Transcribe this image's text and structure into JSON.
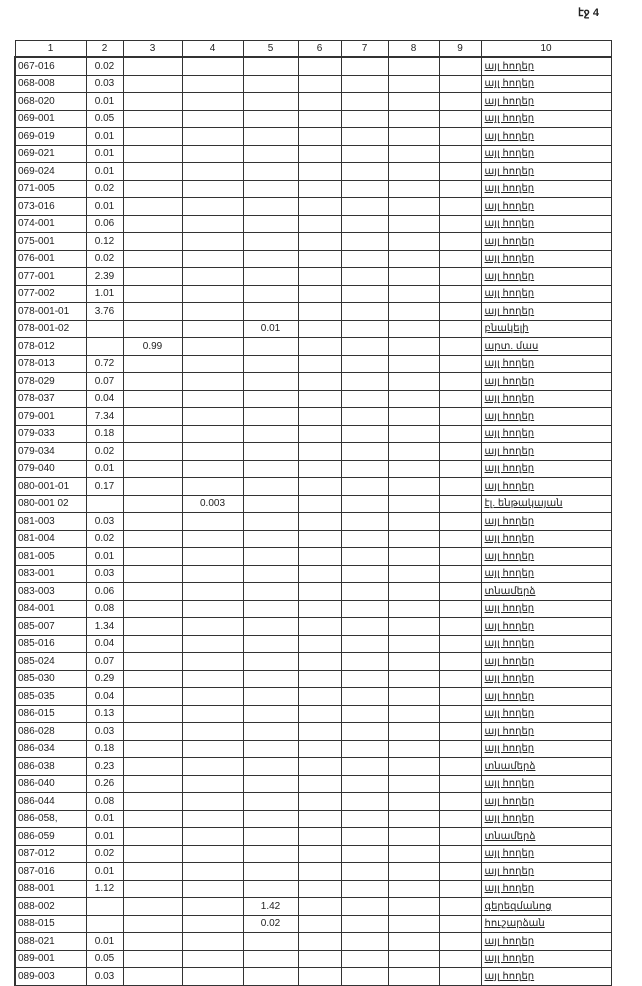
{
  "page_label": "էջ 4",
  "columns": [
    "1",
    "2",
    "3",
    "4",
    "5",
    "6",
    "7",
    "8",
    "9",
    "10"
  ],
  "rows": [
    [
      "067-016",
      "0.02",
      "",
      "",
      "",
      "",
      "",
      "",
      "",
      "այլ հողեր"
    ],
    [
      "068-008",
      "0.03",
      "",
      "",
      "",
      "",
      "",
      "",
      "",
      "այլ հողեր"
    ],
    [
      "068-020",
      "0.01",
      "",
      "",
      "",
      "",
      "",
      "",
      "",
      "այլ հողեր"
    ],
    [
      "069-001",
      "0.05",
      "",
      "",
      "",
      "",
      "",
      "",
      "",
      "այլ հողեր"
    ],
    [
      "069-019",
      "0.01",
      "",
      "",
      "",
      "",
      "",
      "",
      "",
      "այլ հողեր"
    ],
    [
      "069-021",
      "0.01",
      "",
      "",
      "",
      "",
      "",
      "",
      "",
      "այլ հողեր"
    ],
    [
      "069-024",
      "0.01",
      "",
      "",
      "",
      "",
      "",
      "",
      "",
      "այլ հողեր"
    ],
    [
      "071-005",
      "0.02",
      "",
      "",
      "",
      "",
      "",
      "",
      "",
      "այլ հողեր"
    ],
    [
      "073-016",
      "0.01",
      "",
      "",
      "",
      "",
      "",
      "",
      "",
      "այլ հողեր"
    ],
    [
      "074-001",
      "0.06",
      "",
      "",
      "",
      "",
      "",
      "",
      "",
      "այլ հողեր"
    ],
    [
      "075-001",
      "0.12",
      "",
      "",
      "",
      "",
      "",
      "",
      "",
      "այլ հողեր"
    ],
    [
      "076-001",
      "0.02",
      "",
      "",
      "",
      "",
      "",
      "",
      "",
      "այլ հողեր"
    ],
    [
      "077-001",
      "2.39",
      "",
      "",
      "",
      "",
      "",
      "",
      "",
      "այլ հողեր"
    ],
    [
      "077-002",
      "1.01",
      "",
      "",
      "",
      "",
      "",
      "",
      "",
      "այլ հողեր"
    ],
    [
      "078-001-01",
      "3.76",
      "",
      "",
      "",
      "",
      "",
      "",
      "",
      "այլ հողեր"
    ],
    [
      "078-001-02",
      "",
      "",
      "",
      "0.01",
      "",
      "",
      "",
      "",
      "բնակելի"
    ],
    [
      "078-012",
      "",
      "0.99",
      "",
      "",
      "",
      "",
      "",
      "",
      "արտ. մաս"
    ],
    [
      "078-013",
      "0.72",
      "",
      "",
      "",
      "",
      "",
      "",
      "",
      "այլ հողեր"
    ],
    [
      "078-029",
      "0.07",
      "",
      "",
      "",
      "",
      "",
      "",
      "",
      "այլ հողեր"
    ],
    [
      "078-037",
      "0.04",
      "",
      "",
      "",
      "",
      "",
      "",
      "",
      "այլ հողեր"
    ],
    [
      "079-001",
      "7.34",
      "",
      "",
      "",
      "",
      "",
      "",
      "",
      "այլ հողեր"
    ],
    [
      "079-033",
      "0.18",
      "",
      "",
      "",
      "",
      "",
      "",
      "",
      "այլ հողեր"
    ],
    [
      "079-034",
      "0.02",
      "",
      "",
      "",
      "",
      "",
      "",
      "",
      "այլ հողեր"
    ],
    [
      "079-040",
      "0.01",
      "",
      "",
      "",
      "",
      "",
      "",
      "",
      "այլ հողեր"
    ],
    [
      "080-001-01",
      "0.17",
      "",
      "",
      "",
      "",
      "",
      "",
      "",
      "այլ հողեր"
    ],
    [
      "080-001 02",
      "",
      "",
      "0.003",
      "",
      "",
      "",
      "",
      "",
      "էլ. ենթակայան"
    ],
    [
      "081-003",
      "0.03",
      "",
      "",
      "",
      "",
      "",
      "",
      "",
      "այլ հողեր"
    ],
    [
      "081-004",
      "0.02",
      "",
      "",
      "",
      "",
      "",
      "",
      "",
      "այլ հողեր"
    ],
    [
      "081-005",
      "0.01",
      "",
      "",
      "",
      "",
      "",
      "",
      "",
      "այլ հողեր"
    ],
    [
      "083-001",
      "0.03",
      "",
      "",
      "",
      "",
      "",
      "",
      "",
      "այլ հողեր"
    ],
    [
      "083-003",
      "0.06",
      "",
      "",
      "",
      "",
      "",
      "",
      "",
      "տնամերձ"
    ],
    [
      "084-001",
      "0.08",
      "",
      "",
      "",
      "",
      "",
      "",
      "",
      "այլ հողեր"
    ],
    [
      "085-007",
      "1.34",
      "",
      "",
      "",
      "",
      "",
      "",
      "",
      "այլ հողեր"
    ],
    [
      "085-016",
      "0.04",
      "",
      "",
      "",
      "",
      "",
      "",
      "",
      "այլ հողեր"
    ],
    [
      "085-024",
      "0.07",
      "",
      "",
      "",
      "",
      "",
      "",
      "",
      "այլ հողեր"
    ],
    [
      "085-030",
      "0.29",
      "",
      "",
      "",
      "",
      "",
      "",
      "",
      "այլ հողեր"
    ],
    [
      "085-035",
      "0.04",
      "",
      "",
      "",
      "",
      "",
      "",
      "",
      "այլ հողեր"
    ],
    [
      "086-015",
      "0.13",
      "",
      "",
      "",
      "",
      "",
      "",
      "",
      "այլ հողեր"
    ],
    [
      "086-028",
      "0.03",
      "",
      "",
      "",
      "",
      "",
      "",
      "",
      "այլ հողեր"
    ],
    [
      "086-034",
      "0.18",
      "",
      "",
      "",
      "",
      "",
      "",
      "",
      "այլ հողեր"
    ],
    [
      "086-038",
      "0.23",
      "",
      "",
      "",
      "",
      "",
      "",
      "",
      "տնամերձ"
    ],
    [
      "086-040",
      "0.26",
      "",
      "",
      "",
      "",
      "",
      "",
      "",
      "այլ հողեր"
    ],
    [
      "086-044",
      "0.08",
      "",
      "",
      "",
      "",
      "",
      "",
      "",
      "այլ հողեր"
    ],
    [
      "086-058,",
      "0.01",
      "",
      "",
      "",
      "",
      "",
      "",
      "",
      "այլ հողեր"
    ],
    [
      "086-059",
      "0.01",
      "",
      "",
      "",
      "",
      "",
      "",
      "",
      "տնամերձ"
    ],
    [
      "087-012",
      "0.02",
      "",
      "",
      "",
      "",
      "",
      "",
      "",
      "այլ հողեր"
    ],
    [
      "087-016",
      "0.01",
      "",
      "",
      "",
      "",
      "",
      "",
      "",
      "այլ հողեր"
    ],
    [
      "088-001",
      "1.12",
      "",
      "",
      "",
      "",
      "",
      "",
      "",
      "այլ հողեր"
    ],
    [
      "088-002",
      "",
      "",
      "",
      "1.42",
      "",
      "",
      "",
      "",
      "գերեզմանոց"
    ],
    [
      "088-015",
      "",
      "",
      "",
      "0.02",
      "",
      "",
      "",
      "",
      "հուշարձան"
    ],
    [
      "088-021",
      "0.01",
      "",
      "",
      "",
      "",
      "",
      "",
      "",
      "այլ հողեր"
    ],
    [
      "089-001",
      "0.05",
      "",
      "",
      "",
      "",
      "",
      "",
      "",
      "այլ հողեր"
    ],
    [
      "089-003",
      "0.03",
      "",
      "",
      "",
      "",
      "",
      "",
      "",
      "այլ հողեր"
    ]
  ]
}
